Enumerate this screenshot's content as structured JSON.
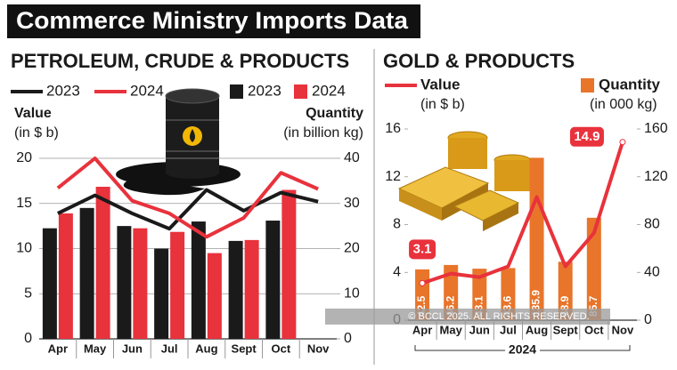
{
  "header": {
    "title": "Commerce Ministry Imports Data"
  },
  "watermark": "© BCCL 2025. ALL RIGHTS RESERVED.",
  "chart_data": [
    {
      "type": "combo",
      "title": "PETROLEUM, CRUDE & PRODUCTS",
      "ylabel": [
        "Value",
        "(in $ b)"
      ],
      "y2label": [
        "Quantity",
        "(in billion kg)"
      ],
      "categories": [
        "Apr",
        "May",
        "Jun",
        "Jul",
        "Aug",
        "Sept",
        "Oct",
        "Nov"
      ],
      "ylim": [
        0,
        20
      ],
      "yticks": [
        0,
        5,
        10,
        15,
        20
      ],
      "y2lim": [
        0,
        40
      ],
      "y2ticks": [
        0,
        10,
        20,
        30,
        40
      ],
      "grid": true,
      "series": [
        {
          "name": "2023",
          "type": "line",
          "axis": "y",
          "color": "#1a1a1a",
          "values": [
            13.9,
            15.9,
            13.9,
            12.2,
            16.5,
            14.2,
            16.2,
            15.2
          ]
        },
        {
          "name": "2024",
          "type": "line",
          "axis": "y",
          "color": "#e8323c",
          "values": [
            16.7,
            20,
            15.3,
            13.9,
            11.3,
            13.4,
            18.4,
            16.6
          ]
        },
        {
          "name": "2023",
          "type": "bar",
          "axis": "y2",
          "color": "#1a1a1a",
          "values": [
            24.5,
            29,
            25,
            20,
            26,
            21.7,
            26.2,
            null
          ]
        },
        {
          "name": "2024",
          "type": "bar",
          "axis": "y2",
          "color": "#e8323c",
          "values": [
            27.8,
            33.7,
            24.5,
            23.7,
            19,
            21.9,
            33,
            null
          ]
        }
      ]
    },
    {
      "type": "combo",
      "title": "GOLD & PRODUCTS",
      "ylabel": [
        "(in $ b)"
      ],
      "y2label": [
        "(in 000 kg)"
      ],
      "xlabel": "2024",
      "categories": [
        "Apr",
        "May",
        "Jun",
        "Jul",
        "Aug",
        "Sept",
        "Oct",
        "Nov"
      ],
      "ylim": [
        0,
        16
      ],
      "yticks": [
        0,
        4,
        8,
        12,
        16
      ],
      "y2lim": [
        0,
        160
      ],
      "y2ticks": [
        0,
        40,
        80,
        120,
        160
      ],
      "grid": false,
      "series": [
        {
          "name": "Value",
          "type": "line",
          "axis": "y",
          "color": "#e8323c",
          "values": [
            3.1,
            3.9,
            3.6,
            4.5,
            10.3,
            4.5,
            7.3,
            14.9
          ],
          "value_labels": [
            "3.1",
            null,
            null,
            null,
            null,
            null,
            null,
            "14.9"
          ]
        },
        {
          "name": "Quantity",
          "type": "bar",
          "axis": "y2",
          "color": "#e8752a",
          "show_values": true,
          "values": [
            42.5,
            46.2,
            43.1,
            43.6,
            135.9,
            48.9,
            85.7,
            null
          ]
        }
      ]
    }
  ]
}
